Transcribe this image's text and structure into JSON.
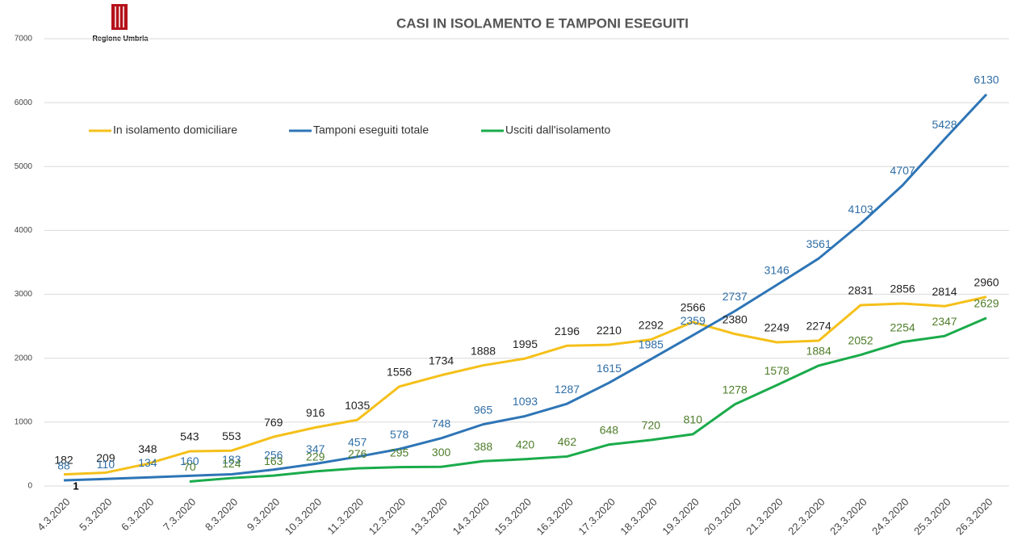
{
  "chart_data": {
    "type": "line",
    "title": "CASI IN ISOLAMENTO E TAMPONI ESEGUITI",
    "logo_text": "Regione Umbria",
    "annotation": "1",
    "categories": [
      "4.3.2020",
      "5.3.2020",
      "6.3.2020",
      "7.3.2020",
      "8.3.2020",
      "9.3.2020",
      "10.3.2020",
      "11.3.2020",
      "12.3.2020",
      "13.3.2020",
      "14.3.2020",
      "15.3.2020",
      "16.3.2020",
      "17.3.2020",
      "18.3.2020",
      "19.3.2020",
      "20.3.2020",
      "21.3.2020",
      "22.3.2020",
      "23.3.2020",
      "24.3.2020",
      "25.3.2020",
      "26.3.2020"
    ],
    "series": [
      {
        "name": "In isolamento domiciliare",
        "color": "#f5c01a",
        "label_color": "#222222",
        "values": [
          182,
          209,
          348,
          543,
          553,
          769,
          916,
          1035,
          1556,
          1734,
          1888,
          1995,
          2196,
          2210,
          2292,
          2566,
          2380,
          2249,
          2274,
          2831,
          2856,
          2814,
          2960
        ]
      },
      {
        "name": "Tamponi eseguiti totale",
        "color": "#2e75b6",
        "label_color": "#2f6ea5",
        "values": [
          88,
          110,
          134,
          160,
          183,
          256,
          347,
          457,
          578,
          748,
          965,
          1093,
          1287,
          1615,
          1985,
          2359,
          2737,
          3146,
          3561,
          4103,
          4707,
          5428,
          6130
        ]
      },
      {
        "name": "Usciti dall'isolamento",
        "color": "#1aab4b",
        "label_color": "#4e7d2a",
        "values": [
          null,
          null,
          null,
          70,
          124,
          163,
          229,
          276,
          295,
          300,
          388,
          420,
          462,
          648,
          720,
          810,
          1278,
          1578,
          1884,
          2052,
          2254,
          2347,
          2629
        ]
      }
    ],
    "ylim": [
      0,
      7000
    ],
    "yticks": [
      0,
      1000,
      2000,
      3000,
      4000,
      5000,
      6000,
      7000
    ],
    "grid": true,
    "legend": "top"
  }
}
